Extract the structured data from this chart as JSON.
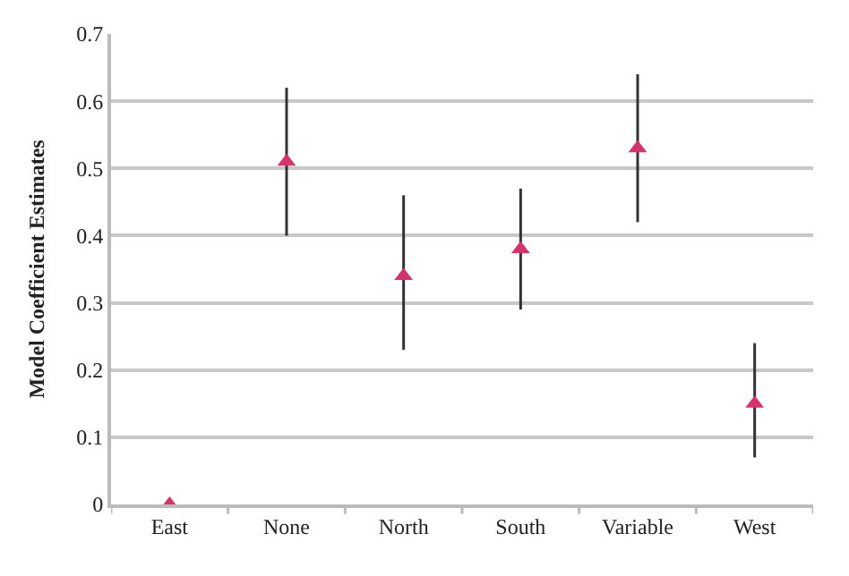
{
  "chart_data": {
    "type": "scatter",
    "ylabel": "Model Coefficient Estimates",
    "categories": [
      "East",
      "None",
      "North",
      "South",
      "Variable",
      "West"
    ],
    "series": [
      {
        "color": "#d6336c",
        "values": [
          0,
          0.51,
          0.34,
          0.38,
          0.53,
          0.15
        ],
        "errors": [
          null,
          [
            0.4,
            0.62
          ],
          [
            0.23,
            0.46
          ],
          [
            0.29,
            0.47
          ],
          [
            0.42,
            0.64
          ],
          [
            0.07,
            0.24
          ]
        ]
      }
    ],
    "ylim": [
      0,
      0.7
    ],
    "yticks": [
      0,
      0.1,
      0.2,
      0.3,
      0.4,
      0.5,
      0.6,
      0.7
    ],
    "grid": "y",
    "marker": "triangle"
  }
}
